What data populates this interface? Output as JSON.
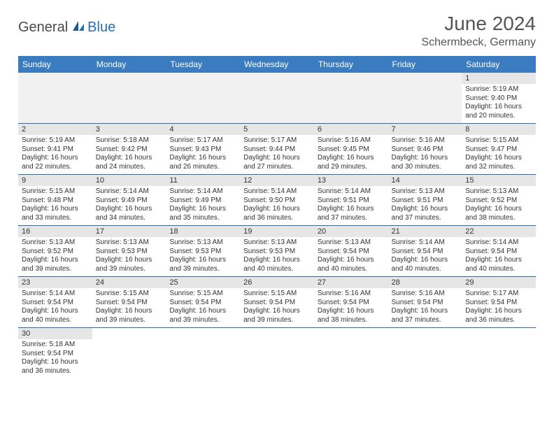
{
  "brand": {
    "part1": "General",
    "part2": "Blue"
  },
  "title": "June 2024",
  "location": "Schermbeck, Germany",
  "colors": {
    "header_bg": "#3b7bbf",
    "divider": "#2a6db0",
    "daynum_bg": "#e6e6e6",
    "empty_bg": "#f1f1f1",
    "text": "#333333",
    "title_text": "#555555",
    "brand_gray": "#4a4a4a",
    "brand_blue": "#2a6db0"
  },
  "day_labels": [
    "Sunday",
    "Monday",
    "Tuesday",
    "Wednesday",
    "Thursday",
    "Friday",
    "Saturday"
  ],
  "weeks": [
    [
      null,
      null,
      null,
      null,
      null,
      null,
      {
        "n": "1",
        "sr": "Sunrise: 5:19 AM",
        "ss": "Sunset: 9:40 PM",
        "dl": "Daylight: 16 hours and 20 minutes."
      }
    ],
    [
      {
        "n": "2",
        "sr": "Sunrise: 5:19 AM",
        "ss": "Sunset: 9:41 PM",
        "dl": "Daylight: 16 hours and 22 minutes."
      },
      {
        "n": "3",
        "sr": "Sunrise: 5:18 AM",
        "ss": "Sunset: 9:42 PM",
        "dl": "Daylight: 16 hours and 24 minutes."
      },
      {
        "n": "4",
        "sr": "Sunrise: 5:17 AM",
        "ss": "Sunset: 9:43 PM",
        "dl": "Daylight: 16 hours and 26 minutes."
      },
      {
        "n": "5",
        "sr": "Sunrise: 5:17 AM",
        "ss": "Sunset: 9:44 PM",
        "dl": "Daylight: 16 hours and 27 minutes."
      },
      {
        "n": "6",
        "sr": "Sunrise: 5:16 AM",
        "ss": "Sunset: 9:45 PM",
        "dl": "Daylight: 16 hours and 29 minutes."
      },
      {
        "n": "7",
        "sr": "Sunrise: 5:16 AM",
        "ss": "Sunset: 9:46 PM",
        "dl": "Daylight: 16 hours and 30 minutes."
      },
      {
        "n": "8",
        "sr": "Sunrise: 5:15 AM",
        "ss": "Sunset: 9:47 PM",
        "dl": "Daylight: 16 hours and 32 minutes."
      }
    ],
    [
      {
        "n": "9",
        "sr": "Sunrise: 5:15 AM",
        "ss": "Sunset: 9:48 PM",
        "dl": "Daylight: 16 hours and 33 minutes."
      },
      {
        "n": "10",
        "sr": "Sunrise: 5:14 AM",
        "ss": "Sunset: 9:49 PM",
        "dl": "Daylight: 16 hours and 34 minutes."
      },
      {
        "n": "11",
        "sr": "Sunrise: 5:14 AM",
        "ss": "Sunset: 9:49 PM",
        "dl": "Daylight: 16 hours and 35 minutes."
      },
      {
        "n": "12",
        "sr": "Sunrise: 5:14 AM",
        "ss": "Sunset: 9:50 PM",
        "dl": "Daylight: 16 hours and 36 minutes."
      },
      {
        "n": "13",
        "sr": "Sunrise: 5:14 AM",
        "ss": "Sunset: 9:51 PM",
        "dl": "Daylight: 16 hours and 37 minutes."
      },
      {
        "n": "14",
        "sr": "Sunrise: 5:13 AM",
        "ss": "Sunset: 9:51 PM",
        "dl": "Daylight: 16 hours and 37 minutes."
      },
      {
        "n": "15",
        "sr": "Sunrise: 5:13 AM",
        "ss": "Sunset: 9:52 PM",
        "dl": "Daylight: 16 hours and 38 minutes."
      }
    ],
    [
      {
        "n": "16",
        "sr": "Sunrise: 5:13 AM",
        "ss": "Sunset: 9:52 PM",
        "dl": "Daylight: 16 hours and 39 minutes."
      },
      {
        "n": "17",
        "sr": "Sunrise: 5:13 AM",
        "ss": "Sunset: 9:53 PM",
        "dl": "Daylight: 16 hours and 39 minutes."
      },
      {
        "n": "18",
        "sr": "Sunrise: 5:13 AM",
        "ss": "Sunset: 9:53 PM",
        "dl": "Daylight: 16 hours and 39 minutes."
      },
      {
        "n": "19",
        "sr": "Sunrise: 5:13 AM",
        "ss": "Sunset: 9:53 PM",
        "dl": "Daylight: 16 hours and 40 minutes."
      },
      {
        "n": "20",
        "sr": "Sunrise: 5:13 AM",
        "ss": "Sunset: 9:54 PM",
        "dl": "Daylight: 16 hours and 40 minutes."
      },
      {
        "n": "21",
        "sr": "Sunrise: 5:14 AM",
        "ss": "Sunset: 9:54 PM",
        "dl": "Daylight: 16 hours and 40 minutes."
      },
      {
        "n": "22",
        "sr": "Sunrise: 5:14 AM",
        "ss": "Sunset: 9:54 PM",
        "dl": "Daylight: 16 hours and 40 minutes."
      }
    ],
    [
      {
        "n": "23",
        "sr": "Sunrise: 5:14 AM",
        "ss": "Sunset: 9:54 PM",
        "dl": "Daylight: 16 hours and 40 minutes."
      },
      {
        "n": "24",
        "sr": "Sunrise: 5:15 AM",
        "ss": "Sunset: 9:54 PM",
        "dl": "Daylight: 16 hours and 39 minutes."
      },
      {
        "n": "25",
        "sr": "Sunrise: 5:15 AM",
        "ss": "Sunset: 9:54 PM",
        "dl": "Daylight: 16 hours and 39 minutes."
      },
      {
        "n": "26",
        "sr": "Sunrise: 5:15 AM",
        "ss": "Sunset: 9:54 PM",
        "dl": "Daylight: 16 hours and 39 minutes."
      },
      {
        "n": "27",
        "sr": "Sunrise: 5:16 AM",
        "ss": "Sunset: 9:54 PM",
        "dl": "Daylight: 16 hours and 38 minutes."
      },
      {
        "n": "28",
        "sr": "Sunrise: 5:16 AM",
        "ss": "Sunset: 9:54 PM",
        "dl": "Daylight: 16 hours and 37 minutes."
      },
      {
        "n": "29",
        "sr": "Sunrise: 5:17 AM",
        "ss": "Sunset: 9:54 PM",
        "dl": "Daylight: 16 hours and 36 minutes."
      }
    ],
    [
      {
        "n": "30",
        "sr": "Sunrise: 5:18 AM",
        "ss": "Sunset: 9:54 PM",
        "dl": "Daylight: 16 hours and 36 minutes."
      },
      null,
      null,
      null,
      null,
      null,
      null
    ]
  ]
}
